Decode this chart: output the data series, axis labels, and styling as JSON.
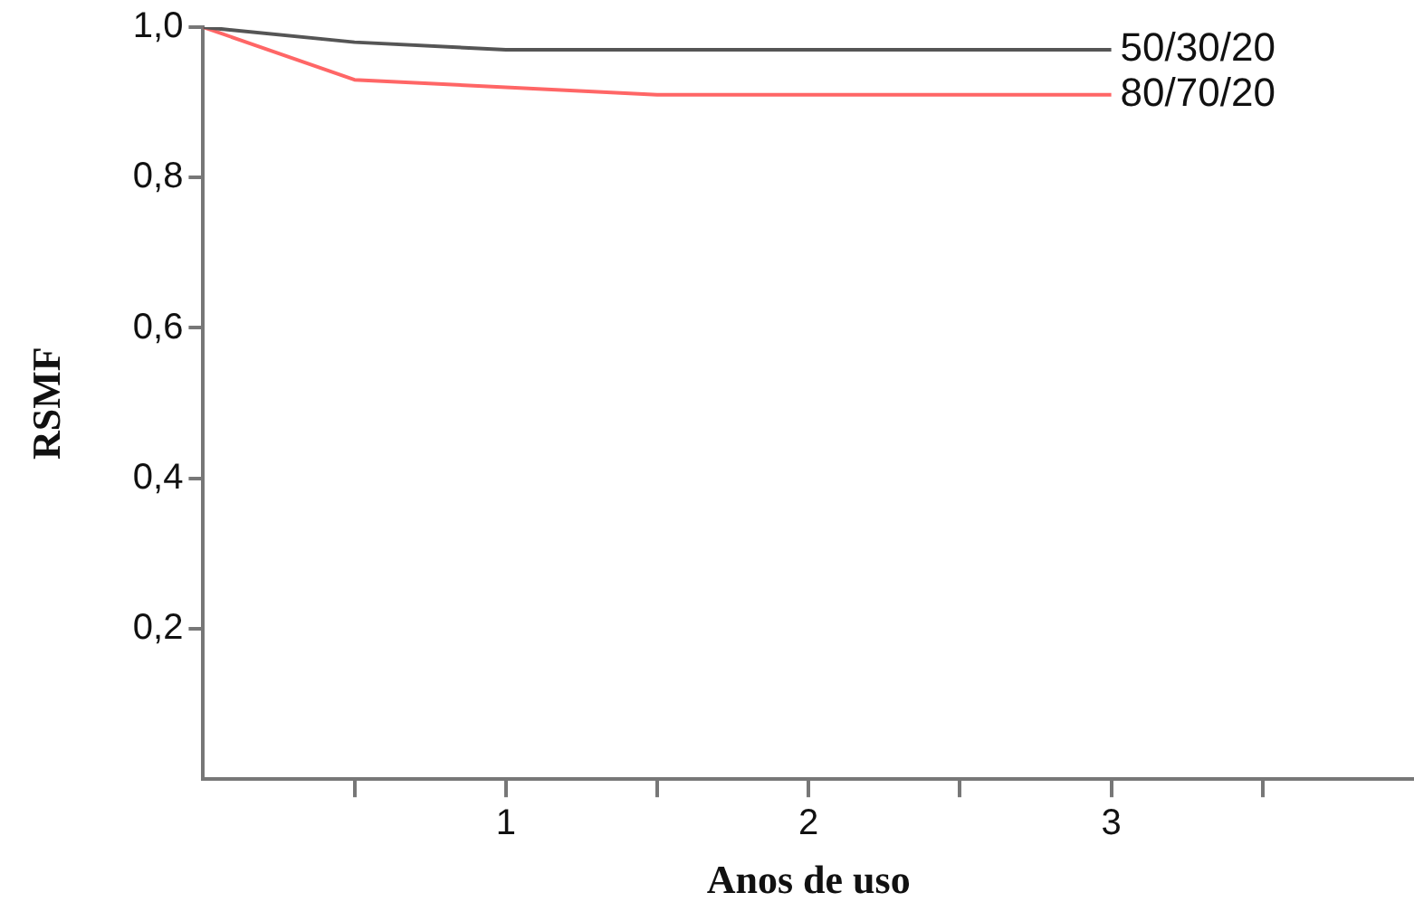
{
  "chart_data": {
    "type": "line",
    "xlabel": "Anos de uso",
    "ylabel": "RSMF",
    "x": [
      0,
      0.5,
      1,
      1.5,
      3
    ],
    "series": [
      {
        "name": "50/30/20",
        "color": "#555555",
        "values": [
          1.0,
          0.98,
          0.97,
          0.97,
          0.97
        ]
      },
      {
        "name": "80/70/20",
        "color": "#ff6666",
        "values": [
          1.0,
          0.93,
          0.92,
          0.91,
          0.91
        ]
      }
    ],
    "xlim": [
      0,
      4
    ],
    "xticks": [
      {
        "value": 0.5,
        "label": null
      },
      1,
      {
        "value": 1.5,
        "label": null
      },
      2,
      {
        "value": 2.5,
        "label": null
      },
      3,
      {
        "value": 3.5,
        "label": null
      }
    ],
    "ylim": [
      0,
      1.0
    ],
    "yticks": [
      {
        "value": 0.2,
        "label": "0,2"
      },
      {
        "value": 0.4,
        "label": "0,4"
      },
      {
        "value": 0.6,
        "label": "0,6"
      },
      {
        "value": 0.8,
        "label": "0,8"
      },
      {
        "value": 1.0,
        "label": "1,0"
      }
    ],
    "grid": false,
    "legend": false,
    "marker": "none",
    "line_style": "solid"
  }
}
